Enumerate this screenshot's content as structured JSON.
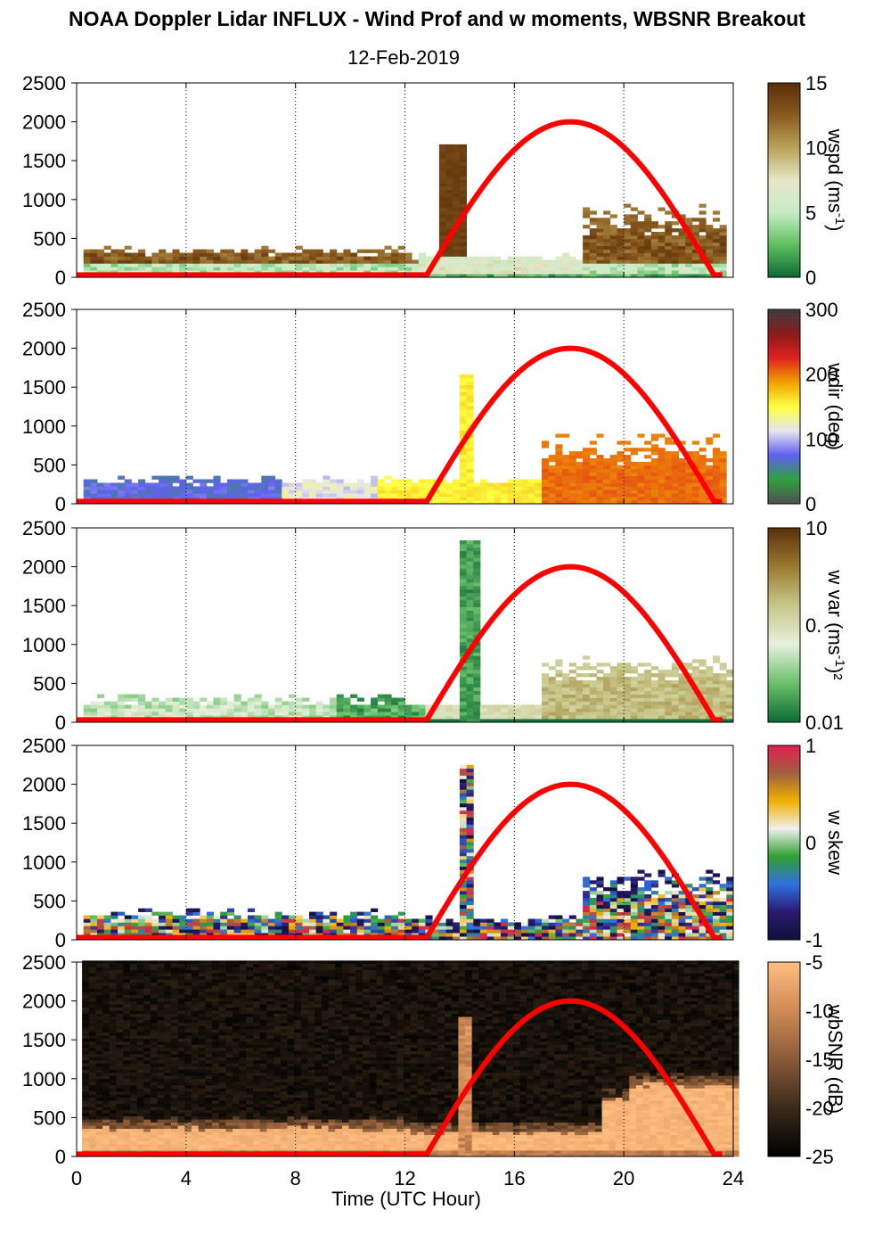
{
  "title": "NOAA Doppler Lidar INFLUX - Wind Prof and w moments, WBSNR Breakout",
  "subtitle": "12-Feb-2019",
  "xlabel": "Time (UTC Hour)",
  "chart_data": {
    "type": "heatmap",
    "x_ticks": [
      0,
      4,
      8,
      12,
      16,
      20,
      24
    ],
    "xlim": [
      0,
      24
    ],
    "y_ticks": [
      0,
      500,
      1000,
      1500,
      2000,
      2500
    ],
    "ylim": [
      0,
      2500
    ],
    "overlay_line": {
      "color": "#ff0000",
      "shape": "sine arch",
      "x_start": 12.8,
      "x_peak": 18,
      "x_end": 23.3,
      "peak": 2000,
      "base": 30
    },
    "panels": [
      {
        "id": "wspd",
        "label": "wspd (ms",
        "label_sup": "-1",
        "label_end": ")",
        "colorbar_ticks": [
          "15",
          "10",
          "5",
          "0"
        ],
        "colorbar_colors": [
          "#5a2e08",
          "#8a5a1e",
          "#b9a25a",
          "#e6e6c8",
          "#c6ecc6",
          "#5fbf5f",
          "#0b6b35"
        ],
        "data_note": "brown (high wspd) below ~400 m at night, green/white near 0-200 m, brown columns up to ~1000 m 19-24 UTC"
      },
      {
        "id": "wdir",
        "label": "wdir (deg",
        "label_sup": "",
        "label_end": ")",
        "colorbar_ticks": [
          "300",
          "200",
          "100",
          "0"
        ],
        "colorbar_colors": [
          "#3d3d3d",
          "#8b1a1a",
          "#e02020",
          "#f0a000",
          "#ffff40",
          "#e6e6f0",
          "#6060f0",
          "#30a040",
          "#505050"
        ],
        "data_note": "green 0-9 UTC (~120 deg), blue/lavender 9-11 UTC, yellow 11-17 UTC (~220 deg), orange 17-24 UTC (~260 deg)"
      },
      {
        "id": "wvar",
        "label": "w var (ms",
        "label_sup": "-1",
        "label_end": ")²",
        "colorbar_ticks": [
          "10",
          "0.",
          "0.01"
        ],
        "colorbar_colors": [
          "#5a2e08",
          "#9a7a30",
          "#c8c88a",
          "#e6f0dc",
          "#6abf6a",
          "#0b6b35"
        ],
        "data_note": "light green near surface 0-9 UTC, dark green 9-12 UTC, dark green column to ~2400 m at ~14 UTC, olive 17-24 UTC below ~800 m"
      },
      {
        "id": "wskew",
        "label": "w skew",
        "label_sup": "",
        "label_end": "",
        "colorbar_ticks": [
          "1",
          "0",
          "-1"
        ],
        "colorbar_colors": [
          "#e02050",
          "#a06040",
          "#f0b000",
          "#f0f0f0",
          "#30a030",
          "#3070e0",
          "#2a1a70",
          "#10103a"
        ],
        "data_note": "mixed colors below ~400 m all day, spiky column to ~2300 m at 14 UTC, mixed to ~900 m 19-24 UTC"
      },
      {
        "id": "wbsnr",
        "label": "wbSNR (dB)",
        "label_sup": "",
        "label_end": "",
        "colorbar_ticks": [
          "-5",
          "-10",
          "-15",
          "-20",
          "-25"
        ],
        "colorbar_colors": [
          "#ffbf80",
          "#d08a55",
          "#8a5a38",
          "#3a2a1a",
          "#000000"
        ],
        "data_note": "dark background, high SNR (peach) below ~300 m at night, up to ~900 m 19-24 UTC, narrow column at ~14 UTC"
      }
    ]
  }
}
